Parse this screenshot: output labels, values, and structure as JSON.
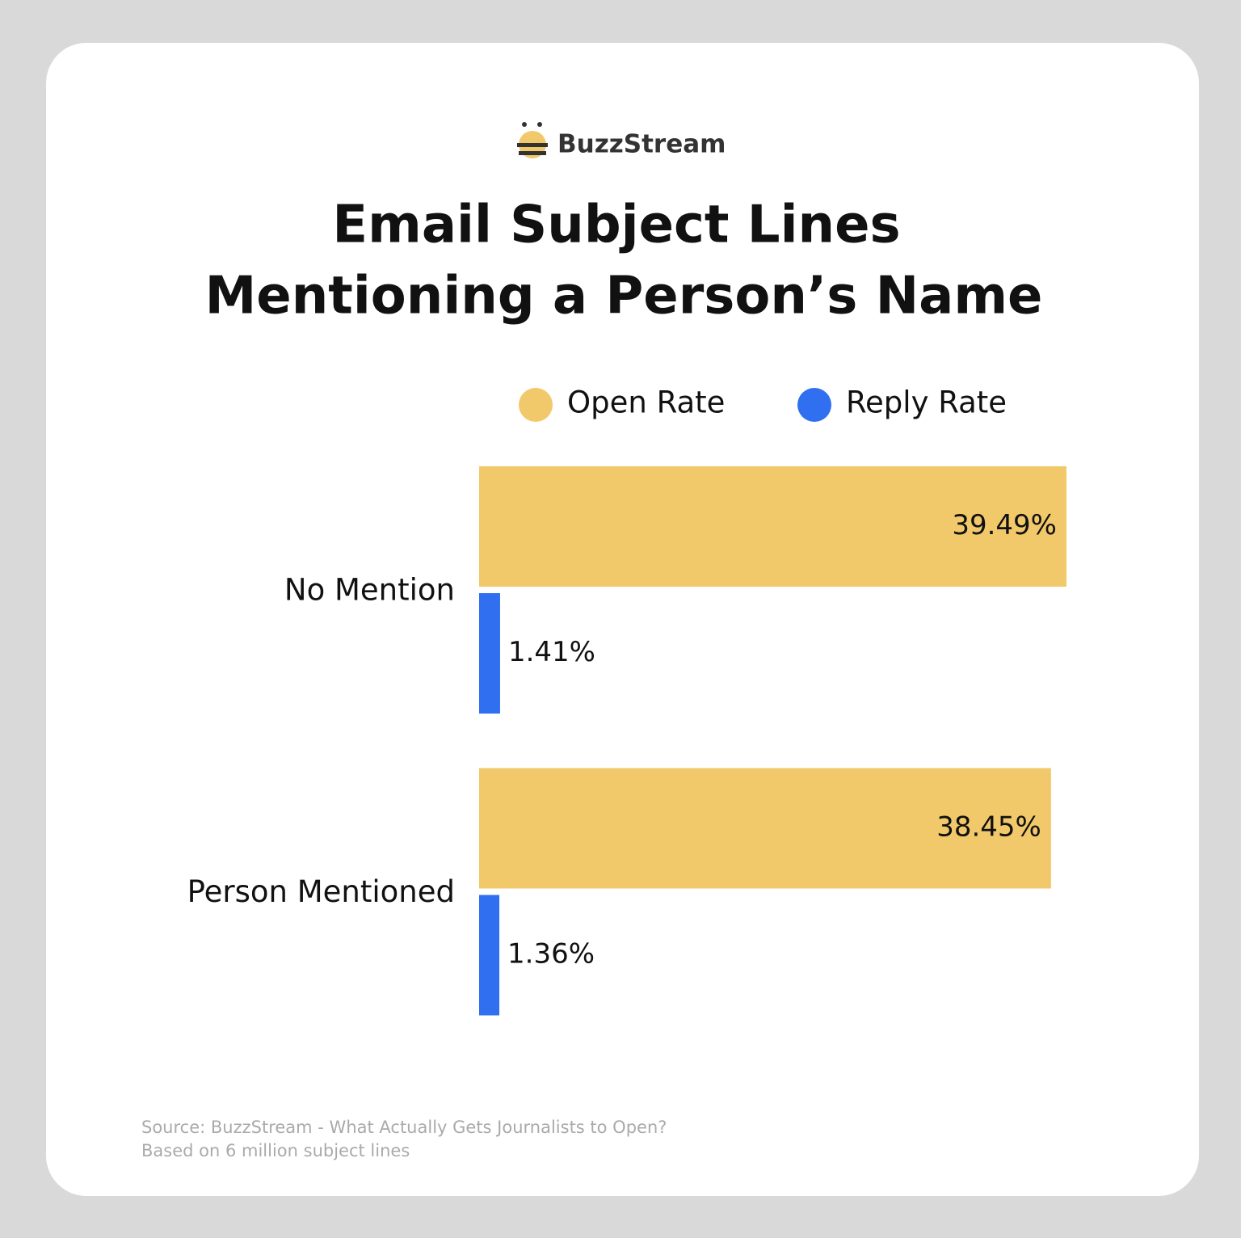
{
  "brand": "BuzzStream",
  "chart_data": {
    "type": "bar",
    "orientation": "horizontal",
    "title": [
      "Email Subject Lines",
      "Mentioning a Person’s Name"
    ],
    "categories": [
      "No Mention",
      "Person Mentioned"
    ],
    "series": [
      {
        "name": "Open Rate",
        "color": "#f2c96a",
        "values": [
          39.49,
          38.45
        ],
        "value_labels": [
          "39.49%",
          "38.45%"
        ]
      },
      {
        "name": "Reply Rate",
        "color": "#2f6ff0",
        "values": [
          1.41,
          1.36
        ],
        "value_labels": [
          "1.41%",
          "1.36%"
        ]
      }
    ],
    "xlim": [
      0,
      40
    ],
    "source": [
      "Source: BuzzStream - What Actually Gets Journalists to Open?",
      "Based on 6 million subject lines"
    ]
  }
}
